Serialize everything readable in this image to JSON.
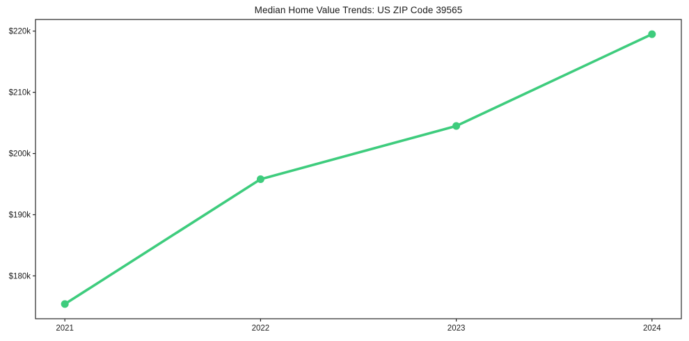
{
  "chart_data": {
    "type": "line",
    "title": "Median Home Value Trends: US ZIP Code 39565",
    "series_name": "Median home value",
    "x": [
      2021,
      2022,
      2023,
      2024
    ],
    "xtick_labels": [
      "2021",
      "2022",
      "2023",
      "2024"
    ],
    "values": [
      175400,
      195800,
      204500,
      219500
    ],
    "ytick_values": [
      180000,
      190000,
      200000,
      210000,
      220000
    ],
    "ytick_labels": [
      "$180k",
      "$190k",
      "$200k",
      "$210k",
      "$220k"
    ],
    "xlim": [
      2020.85,
      2024.15
    ],
    "ylim": [
      173000,
      221900
    ],
    "xlabel": "",
    "ylabel": "",
    "grid": false,
    "legend": false,
    "line_color": "#3ecc7d",
    "marker": "circle",
    "text_color": "#1a1a1a",
    "spine_color": "#262626",
    "background": "#ffffff"
  }
}
